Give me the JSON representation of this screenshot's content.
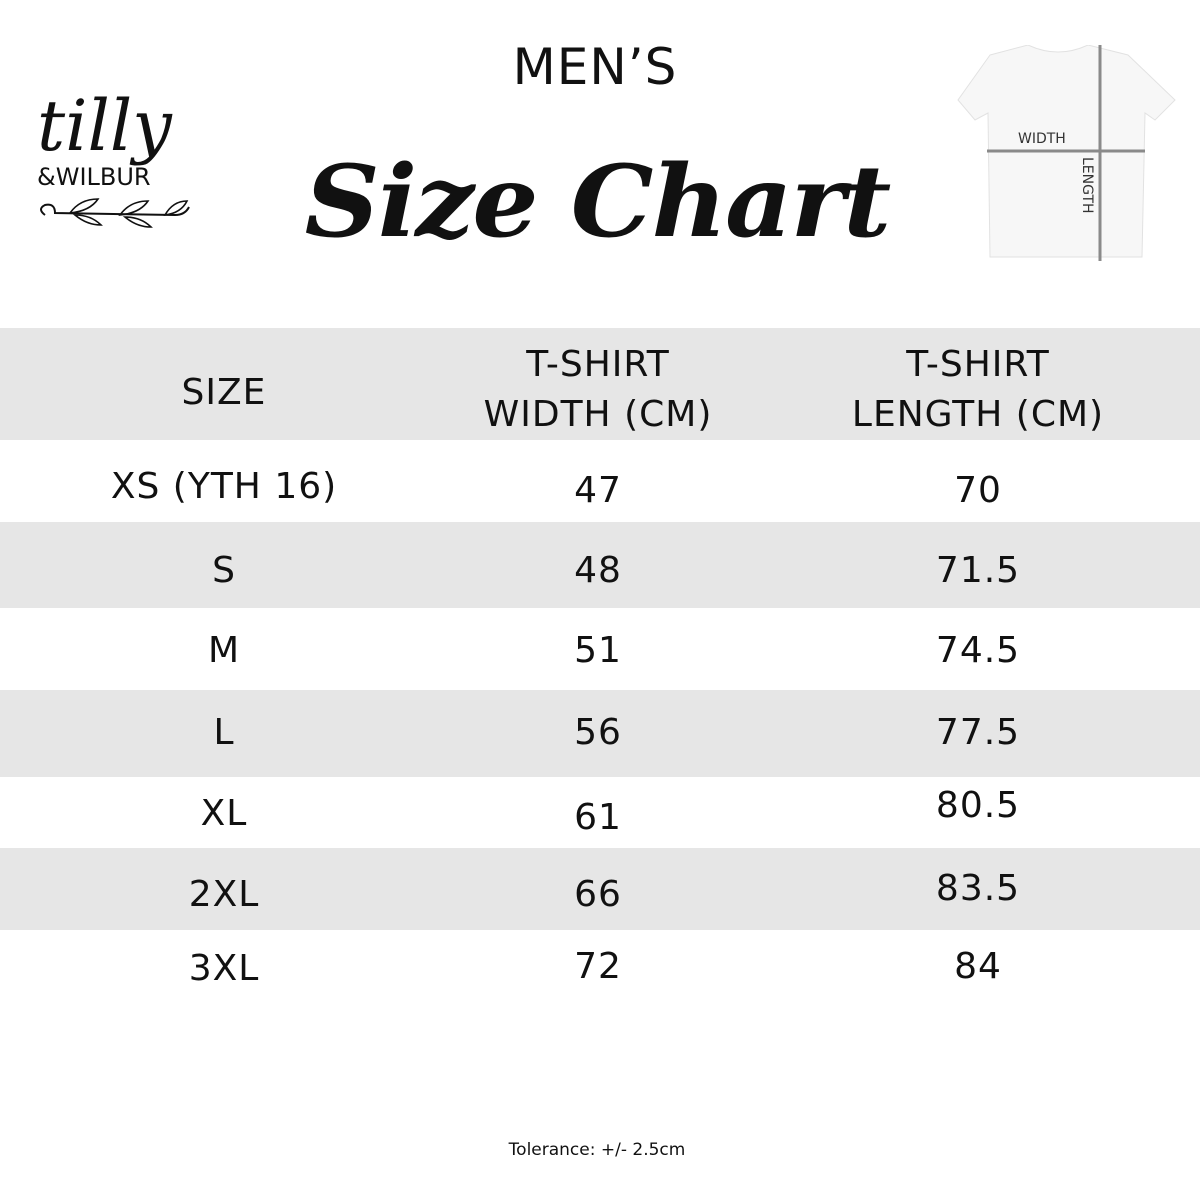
{
  "header": {
    "subtitle": "MEN’S",
    "title": "Size Chart"
  },
  "logo": {
    "text": "tilly &WILBUR"
  },
  "diagram": {
    "width_label": "WIDTH",
    "length_label": "LENGTH"
  },
  "table": {
    "columns": [
      "SIZE",
      "T-SHIRT WIDTH (CM)",
      "T-SHIRT LENGTH (CM)"
    ],
    "column_lines": [
      [
        "SIZE"
      ],
      [
        "T-SHIRT",
        "WIDTH (CM)"
      ],
      [
        "T-SHIRT",
        "LENGTH (CM)"
      ]
    ],
    "rows": [
      [
        "XS (YTH 16)",
        "47",
        "70"
      ],
      [
        "S",
        "48",
        "71.5"
      ],
      [
        "M",
        "51",
        "74.5"
      ],
      [
        "L",
        "56",
        "77.5"
      ],
      [
        "XL",
        "61",
        "80.5"
      ],
      [
        "2XL",
        "66",
        "83.5"
      ],
      [
        "3XL",
        "72",
        "84"
      ]
    ]
  },
  "footer": {
    "tolerance": "Tolerance: +/- 2.5cm"
  },
  "colors": {
    "band": "#e6e6e6",
    "text": "#111111",
    "measure_line": "#8a8a8a"
  }
}
